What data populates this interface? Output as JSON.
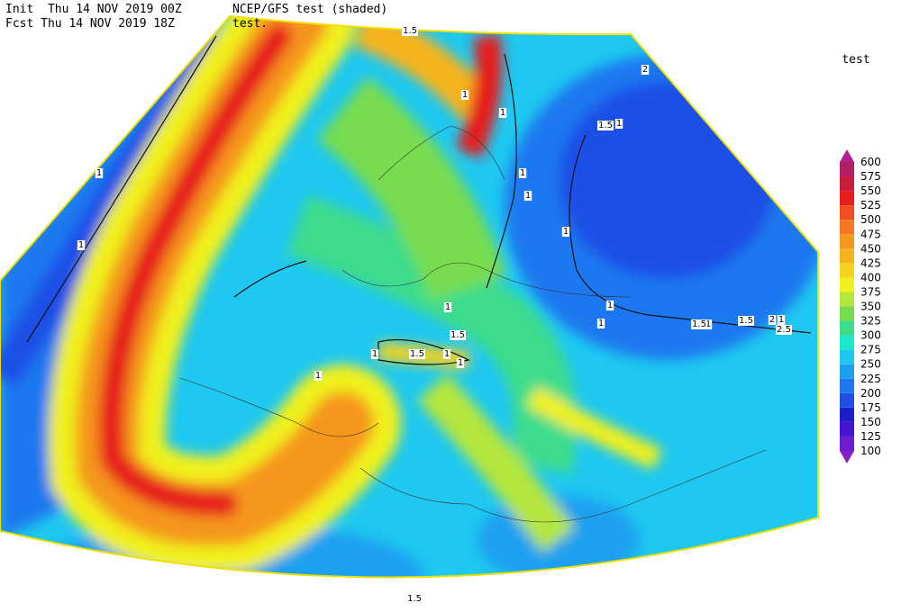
{
  "header": {
    "init": "Init  Thu 14 NOV 2019 00Z",
    "fcst": "Fcst Thu 14 NOV 2019 18Z",
    "model": "NCEP/GFS test (shaded)",
    "field": "test."
  },
  "legend": {
    "title": "test",
    "levels": [
      100,
      125,
      150,
      175,
      200,
      225,
      250,
      275,
      300,
      325,
      350,
      375,
      400,
      425,
      450,
      475,
      500,
      525,
      550,
      575,
      600
    ],
    "colors": [
      "#8a1ec8",
      "#6e1ed2",
      "#4614d2",
      "#1e1ec8",
      "#1e50e6",
      "#1e78f0",
      "#1ea0f0",
      "#1ec8f0",
      "#1ee6c8",
      "#3cdc8c",
      "#78dc50",
      "#b4e63c",
      "#f0f01e",
      "#f5d21e",
      "#f5b41e",
      "#f5961e",
      "#f5781e",
      "#f0501e",
      "#e61e1e",
      "#c81e3c",
      "#b41e64",
      "#b41e96"
    ]
  },
  "contour_labels": [
    "1.5",
    "2",
    "1",
    "1",
    "1.5",
    "1",
    "1",
    "1",
    "1",
    "1",
    "1",
    "1",
    "1.5",
    "1.5",
    "2",
    "1",
    "2.5",
    "1",
    "1.5",
    "1",
    "1",
    "1",
    "1.5",
    "1",
    "1",
    "1",
    "1.5"
  ]
}
